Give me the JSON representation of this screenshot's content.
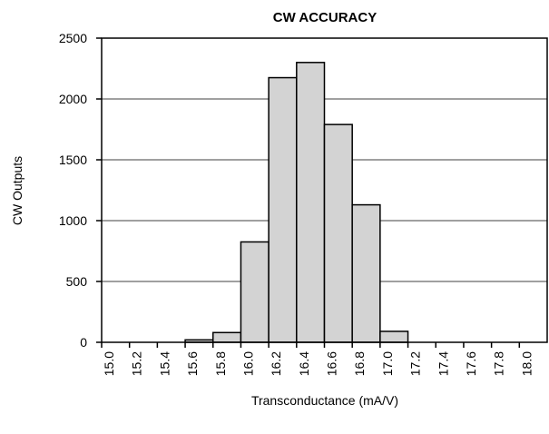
{
  "chart_data": {
    "type": "bar",
    "title": "CW ACCURACY",
    "ylabel": "CW Outputs",
    "xlabel": "Transconductance (mA/V)",
    "categories": [
      "15.0",
      "15.2",
      "15.4",
      "15.6",
      "15.8",
      "16.0",
      "16.2",
      "16.4",
      "16.6",
      "16.8",
      "17.0",
      "17.2",
      "17.4",
      "17.6",
      "17.8",
      "18.0"
    ],
    "values": [
      0,
      0,
      0,
      20,
      80,
      825,
      2175,
      2300,
      1790,
      1130,
      90,
      0,
      0,
      0,
      0,
      0
    ],
    "color": "#d3d3d3",
    "ylim": [
      0,
      2500
    ],
    "yticks": [
      0,
      500,
      1000,
      1500,
      2000,
      2500
    ],
    "grid": true
  }
}
